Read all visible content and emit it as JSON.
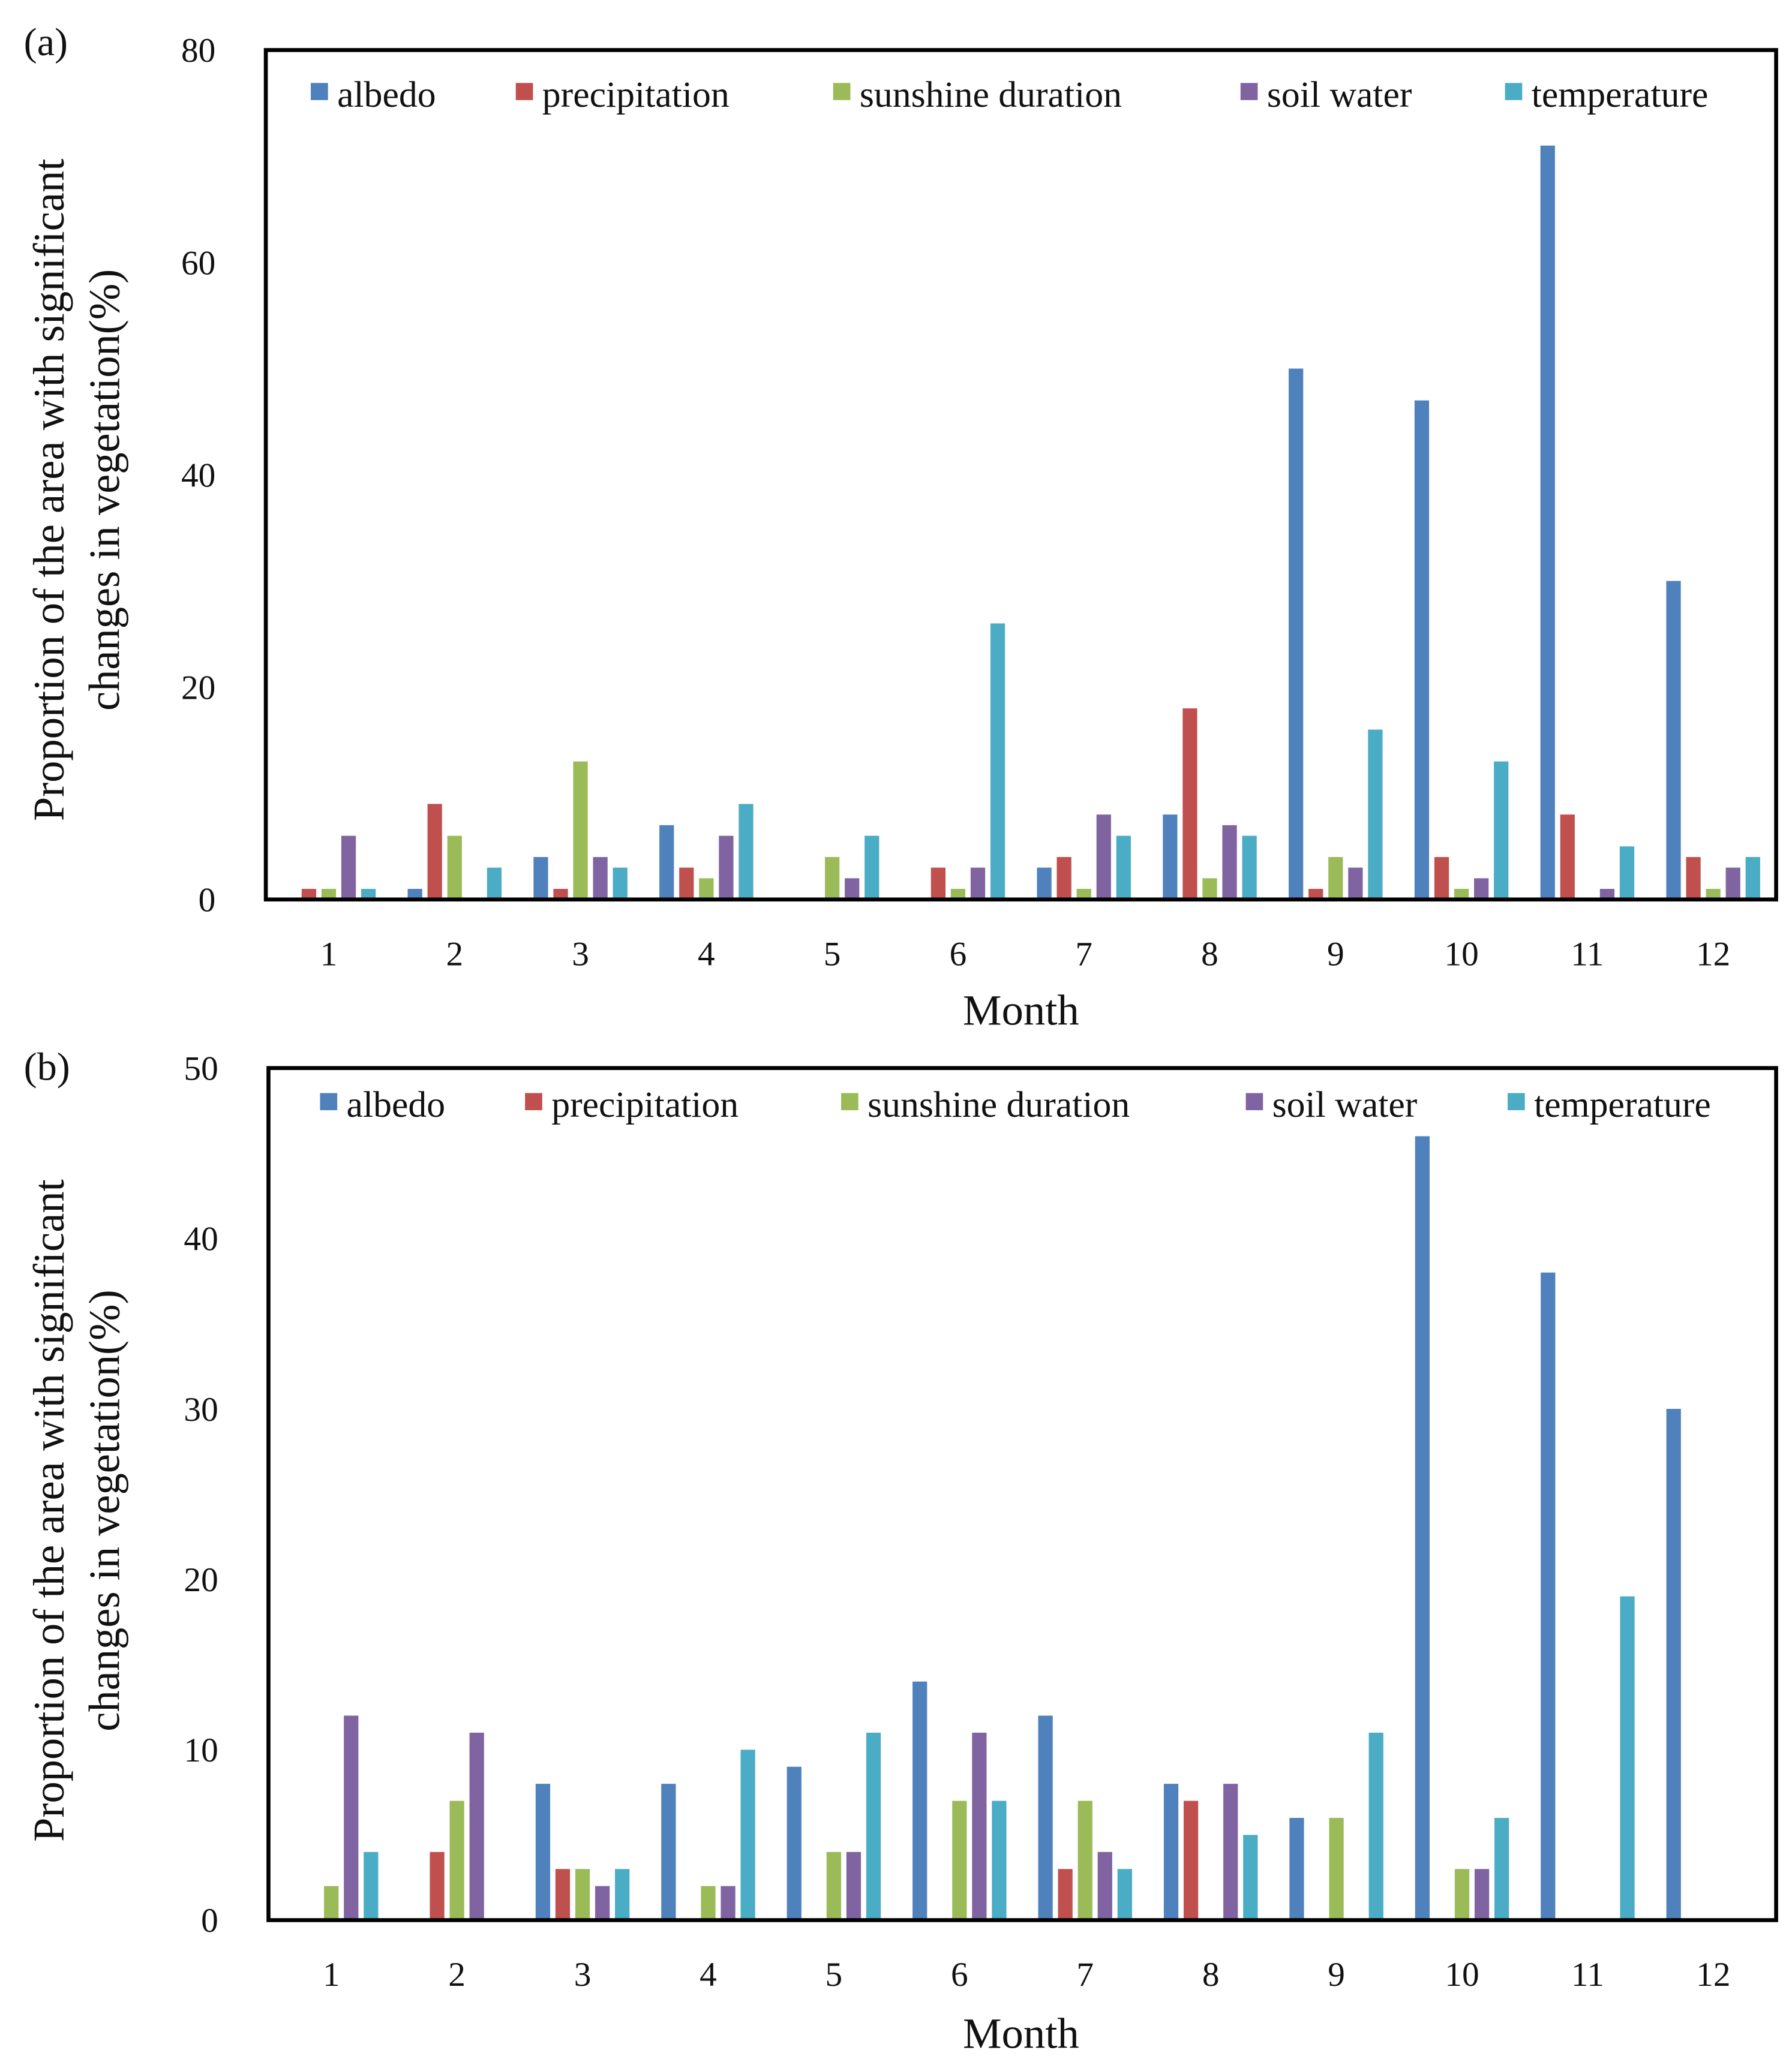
{
  "colors": {
    "albedo": "#4F81BD",
    "precipitation": "#C0504D",
    "sunshine duration": "#9BBB59",
    "soil water": "#8064A2",
    "temperature": "#4BACC6"
  },
  "chart_data": [
    {
      "type": "bar",
      "panel_label": "(a)",
      "xlabel": "Month",
      "ylabel_line1": "Proportion of the area with significant",
      "ylabel_line2": "changes in vegetation(%)",
      "ylim": [
        0,
        80
      ],
      "yticks": [
        "0",
        "20",
        "40",
        "60",
        "80"
      ],
      "categories": [
        "1",
        "2",
        "3",
        "4",
        "5",
        "6",
        "7",
        "8",
        "9",
        "10",
        "11",
        "12"
      ],
      "legend_position": "top",
      "series": [
        {
          "name": "albedo",
          "values": [
            0,
            1,
            4,
            7,
            0,
            0,
            3,
            8,
            50,
            47,
            71,
            30
          ]
        },
        {
          "name": "precipitation",
          "values": [
            1,
            9,
            1,
            3,
            0,
            3,
            4,
            18,
            1,
            4,
            8,
            4
          ]
        },
        {
          "name": "sunshine duration",
          "values": [
            1,
            6,
            13,
            2,
            4,
            1,
            1,
            2,
            4,
            1,
            0,
            1
          ]
        },
        {
          "name": "soil water",
          "values": [
            6,
            0,
            4,
            6,
            2,
            3,
            8,
            7,
            3,
            2,
            1,
            3
          ]
        },
        {
          "name": "temperature",
          "values": [
            1,
            3,
            3,
            9,
            6,
            26,
            6,
            6,
            16,
            13,
            5,
            4
          ]
        }
      ]
    },
    {
      "type": "bar",
      "panel_label": "(b)",
      "xlabel": "Month",
      "ylabel_line1": "Proportion of the area with significant",
      "ylabel_line2": "changes in vegetation(%)",
      "ylim": [
        0,
        50
      ],
      "yticks": [
        "0",
        "10",
        "20",
        "30",
        "40",
        "50"
      ],
      "categories": [
        "1",
        "2",
        "3",
        "4",
        "5",
        "6",
        "7",
        "8",
        "9",
        "10",
        "11",
        "12"
      ],
      "legend_position": "top",
      "series": [
        {
          "name": "albedo",
          "values": [
            0,
            0,
            8,
            8,
            9,
            14,
            12,
            8,
            6,
            46,
            38,
            30
          ]
        },
        {
          "name": "precipitation",
          "values": [
            0,
            4,
            3,
            0,
            0,
            0,
            3,
            7,
            0,
            0,
            0,
            0
          ]
        },
        {
          "name": "sunshine duration",
          "values": [
            2,
            7,
            3,
            2,
            4,
            7,
            7,
            0,
            6,
            3,
            0,
            0
          ]
        },
        {
          "name": "soil water",
          "values": [
            12,
            11,
            2,
            2,
            4,
            11,
            4,
            8,
            0,
            3,
            0,
            0
          ]
        },
        {
          "name": "temperature",
          "values": [
            4,
            0,
            3,
            10,
            11,
            7,
            3,
            5,
            11,
            6,
            19,
            0
          ]
        }
      ]
    }
  ]
}
